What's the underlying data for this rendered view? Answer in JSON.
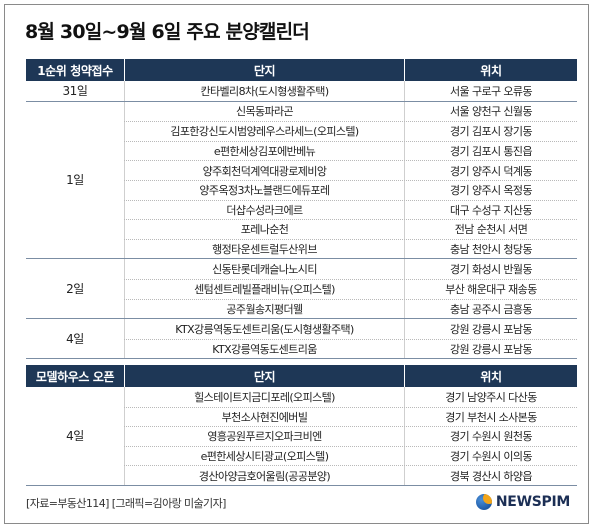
{
  "title": "8월 30일~9월 6일 주요 분양캘린더",
  "subscription": {
    "header": {
      "col1": "1순위 청약접수",
      "col2": "단지",
      "col3": "위치"
    },
    "groups": [
      {
        "date": "31일",
        "rows": [
          {
            "name": "칸타벨리8차(도시형생활주택)",
            "location": "서울 구로구 오류동"
          }
        ]
      },
      {
        "date": "1일",
        "rows": [
          {
            "name": "신목동파라곤",
            "location": "서울 양천구 신월동"
          },
          {
            "name": "김포한강신도시범양레우스라세느(오피스텔)",
            "location": "경기 김포시 장기동"
          },
          {
            "name": "e편한세상김포에반베뉴",
            "location": "경기 김포시 통진읍"
          },
          {
            "name": "양주회천덕계역대광로제비앙",
            "location": "경기 양주시 덕계동"
          },
          {
            "name": "양주옥정3차노블랜드에듀포레",
            "location": "경기 양주시 옥정동"
          },
          {
            "name": "더샵수성라크에르",
            "location": "대구 수성구 지산동"
          },
          {
            "name": "포레나순천",
            "location": "전남 순천시 서면"
          },
          {
            "name": "행정타운센트럴두산위브",
            "location": "충남 천안시 청당동"
          }
        ]
      },
      {
        "date": "2일",
        "rows": [
          {
            "name": "신동탄롯데캐슬나노시티",
            "location": "경기 화성시 반월동"
          },
          {
            "name": "센텀센트레빌플래비뉴(오피스텔)",
            "location": "부산 해운대구 재송동"
          },
          {
            "name": "공주월송지평더웰",
            "location": "충남 공주시 금흥동"
          }
        ]
      },
      {
        "date": "4일",
        "rows": [
          {
            "name": "KTX강릉역동도센트리움(도시형생활주택)",
            "location": "강원 강릉시 포남동"
          },
          {
            "name": "KTX강릉역동도센트리움",
            "location": "강원 강릉시 포남동"
          }
        ]
      }
    ]
  },
  "modelhouse": {
    "header": {
      "col1": "모델하우스 오픈",
      "col2": "단지",
      "col3": "위치"
    },
    "groups": [
      {
        "date": "4일",
        "rows": [
          {
            "name": "힐스테이트지금디포레(오피스텔)",
            "location": "경기 남양주시 다산동"
          },
          {
            "name": "부천소사현진에버빌",
            "location": "경기 부천시 소사본동"
          },
          {
            "name": "영흥공원푸르지오파크비엔",
            "location": "경기 수원시 원천동"
          },
          {
            "name": "e편한세상시티광교(오피스텔)",
            "location": "경기 수원시 이의동"
          },
          {
            "name": "경산아양금호어울림(공공분양)",
            "location": "경북 경산시 하양읍"
          }
        ]
      }
    ]
  },
  "source": "[자료=부동산114] [그래픽=김아랑 미술기자]",
  "logo": {
    "text": "NEWSPIM",
    "icon": "newspim-logo-icon",
    "colors": {
      "blue": "#1f5aa6",
      "orange": "#f2a51a",
      "navy": "#1c2f55"
    }
  },
  "colors": {
    "header_bg": "#1e3756",
    "header_text": "#ffffff"
  }
}
